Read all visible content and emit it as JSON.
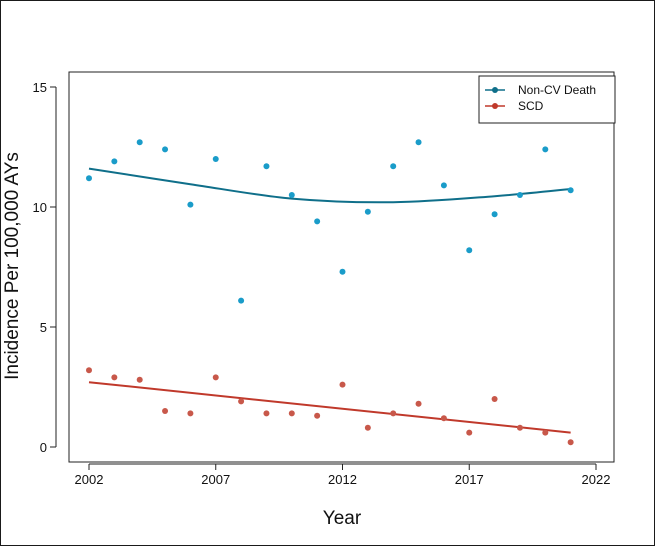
{
  "chart_data": {
    "type": "scatter",
    "xlabel": "Year",
    "ylabel": "Incidence Per 100,000 AYs",
    "xlim": [
      2002,
      2022
    ],
    "ylim": [
      0,
      15
    ],
    "xticks": [
      2002,
      2007,
      2012,
      2017,
      2022
    ],
    "yticks": [
      0,
      5,
      10,
      15
    ],
    "grid": false,
    "legend_position": "top-right",
    "series": [
      {
        "name": "Non-CV Death",
        "point_color": "#1a9cc9",
        "line_color": "#0f6f8a",
        "x": [
          2002,
          2003,
          2004,
          2005,
          2006,
          2007,
          2008,
          2009,
          2010,
          2011,
          2012,
          2013,
          2014,
          2015,
          2016,
          2017,
          2018,
          2019,
          2020,
          2021
        ],
        "y": [
          11.2,
          11.9,
          12.7,
          12.4,
          10.1,
          12.0,
          6.1,
          11.7,
          10.5,
          9.4,
          7.3,
          9.8,
          11.7,
          12.7,
          10.9,
          8.2,
          9.7,
          10.5,
          12.4,
          10.7
        ],
        "trend": {
          "type": "quadratic",
          "x": [
            2002,
            2006,
            2010,
            2014,
            2018,
            2021
          ],
          "y": [
            11.6,
            10.95,
            10.35,
            10.2,
            10.45,
            10.75
          ]
        }
      },
      {
        "name": "SCD",
        "point_color": "#c8584a",
        "line_color": "#c0392b",
        "x": [
          2002,
          2003,
          2004,
          2005,
          2006,
          2007,
          2008,
          2009,
          2010,
          2011,
          2012,
          2013,
          2014,
          2015,
          2016,
          2017,
          2018,
          2019,
          2020,
          2021
        ],
        "y": [
          3.2,
          2.9,
          2.8,
          1.5,
          1.4,
          2.9,
          1.9,
          1.4,
          1.4,
          1.3,
          2.6,
          0.8,
          1.4,
          1.8,
          1.2,
          0.6,
          2.0,
          0.8,
          0.6,
          0.2
        ],
        "trend": {
          "type": "linear",
          "x": [
            2002,
            2021
          ],
          "y": [
            2.7,
            0.6
          ]
        }
      }
    ]
  }
}
